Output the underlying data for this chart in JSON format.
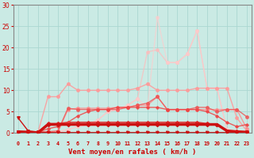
{
  "bg_color": "#caeae4",
  "grid_color": "#aad8d2",
  "xlabel": "Vent moyen/en rafales ( km/h )",
  "xlabel_color": "#cc0000",
  "tick_color": "#cc0000",
  "spine_color": "#888888",
  "ylim": [
    0,
    30
  ],
  "xlim": [
    -0.5,
    23.5
  ],
  "yticks": [
    0,
    5,
    10,
    15,
    20,
    25,
    30
  ],
  "xticks": [
    0,
    1,
    2,
    3,
    4,
    5,
    6,
    7,
    8,
    9,
    10,
    11,
    12,
    13,
    14,
    15,
    16,
    17,
    18,
    19,
    20,
    21,
    22,
    23
  ],
  "series": [
    {
      "y": [
        3.5,
        0.5,
        0.2,
        0.1,
        0.1,
        0.1,
        0.1,
        0.1,
        0.1,
        0.1,
        0.1,
        0.1,
        0.1,
        0.1,
        0.1,
        0.1,
        0.1,
        0.1,
        0.1,
        0.1,
        0.1,
        0.1,
        0.1,
        0.2
      ],
      "color": "#cc1111",
      "lw": 1.0,
      "marker": "v",
      "ms": 2.5,
      "alpha": 1.0,
      "zorder": 5
    },
    {
      "y": [
        0.3,
        0.2,
        0.1,
        2.0,
        2.0,
        2.0,
        2.0,
        2.0,
        2.0,
        2.0,
        2.0,
        2.0,
        2.0,
        2.0,
        2.0,
        2.0,
        2.0,
        2.0,
        2.0,
        2.0,
        2.0,
        0.5,
        0.3,
        0.2
      ],
      "color": "#cc1111",
      "lw": 2.5,
      "marker": "D",
      "ms": 2.0,
      "alpha": 1.0,
      "zorder": 5
    },
    {
      "y": [
        0.2,
        0.2,
        0.2,
        2.2,
        2.2,
        2.5,
        2.5,
        2.5,
        2.5,
        2.5,
        2.5,
        2.5,
        2.5,
        2.5,
        2.5,
        2.5,
        2.5,
        2.5,
        2.5,
        2.2,
        2.0,
        0.5,
        0.4,
        0.2
      ],
      "color": "#dd2222",
      "lw": 1.2,
      "marker": "D",
      "ms": 2.0,
      "alpha": 0.9,
      "zorder": 4
    },
    {
      "y": [
        0.2,
        0.2,
        0.2,
        1.0,
        1.5,
        2.5,
        4.0,
        5.0,
        5.5,
        5.5,
        6.0,
        6.0,
        6.0,
        6.0,
        6.0,
        5.5,
        5.5,
        5.5,
        5.5,
        5.0,
        4.0,
        2.5,
        1.5,
        2.0
      ],
      "color": "#ee4444",
      "lw": 1.0,
      "marker": "D",
      "ms": 1.8,
      "alpha": 0.85,
      "zorder": 4
    },
    {
      "y": [
        0.3,
        0.3,
        0.3,
        8.5,
        8.5,
        11.5,
        10.0,
        10.0,
        10.0,
        10.0,
        10.0,
        10.0,
        10.5,
        11.5,
        10.0,
        10.0,
        10.0,
        10.0,
        10.5,
        10.5,
        10.5,
        10.5,
        3.5,
        0.5
      ],
      "color": "#ff9999",
      "lw": 1.0,
      "marker": "o",
      "ms": 2.5,
      "alpha": 0.85,
      "zorder": 3
    },
    {
      "y": [
        0.2,
        0.2,
        0.2,
        0.2,
        0.2,
        5.5,
        5.8,
        5.8,
        5.8,
        5.8,
        6.0,
        6.0,
        6.5,
        6.5,
        8.5,
        5.5,
        5.5,
        5.5,
        5.5,
        5.5,
        5.5,
        5.5,
        5.5,
        1.0
      ],
      "color": "#ff8888",
      "lw": 1.0,
      "marker": "o",
      "ms": 2.5,
      "alpha": 0.8,
      "zorder": 3
    },
    {
      "y": [
        0.2,
        0.2,
        0.2,
        0.3,
        0.5,
        5.8,
        5.5,
        5.5,
        5.5,
        5.5,
        5.5,
        6.0,
        6.5,
        7.0,
        8.5,
        5.5,
        5.5,
        5.5,
        6.0,
        6.0,
        5.0,
        5.5,
        5.5,
        3.8
      ],
      "color": "#ee5555",
      "lw": 1.0,
      "marker": "o",
      "ms": 2.5,
      "alpha": 0.8,
      "zorder": 3
    },
    {
      "y": [
        0.3,
        0.2,
        0.1,
        0.1,
        0.3,
        0.8,
        1.5,
        2.0,
        3.0,
        5.0,
        5.5,
        6.5,
        8.0,
        19.0,
        19.5,
        16.5,
        16.5,
        18.5,
        24.0,
        10.5,
        10.5,
        0.8,
        0.5,
        0.3
      ],
      "color": "#ffbbbb",
      "lw": 1.0,
      "marker": "o",
      "ms": 2.5,
      "alpha": 0.7,
      "zorder": 2
    },
    {
      "y": [
        0.3,
        0.2,
        0.1,
        0.1,
        0.3,
        0.8,
        1.5,
        2.0,
        3.0,
        5.0,
        5.5,
        6.5,
        8.0,
        6.0,
        27.0,
        16.5,
        16.5,
        18.5,
        24.0,
        10.5,
        10.5,
        0.8,
        0.5,
        0.3
      ],
      "color": "#ffcccc",
      "lw": 1.0,
      "marker": "o",
      "ms": 2.5,
      "alpha": 0.65,
      "zorder": 2
    }
  ],
  "arrow_color": "#cc0000"
}
